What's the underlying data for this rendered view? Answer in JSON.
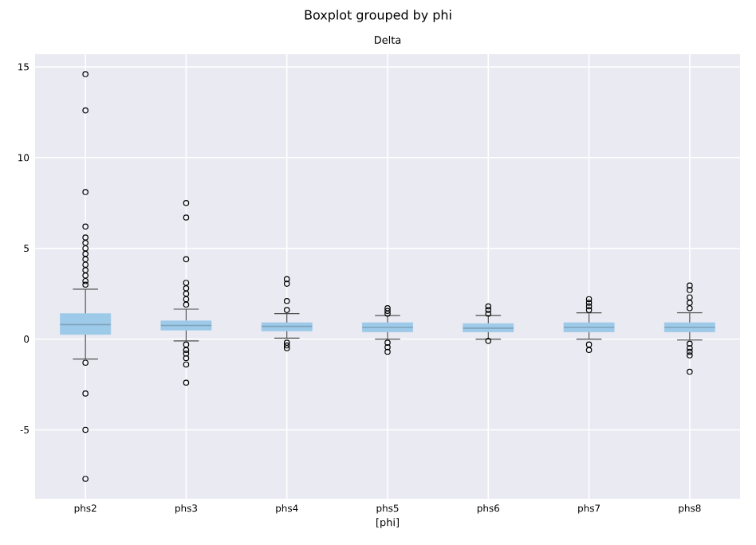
{
  "chart_data": {
    "type": "box",
    "title": "Boxplot grouped by phi",
    "subtitle": "Delta",
    "xlabel": "[phi]",
    "categories": [
      "phs2",
      "phs3",
      "phs4",
      "phs5",
      "phs6",
      "phs7",
      "phs8"
    ],
    "ylim": [
      -8.8,
      15.7
    ],
    "yticks": [
      -5,
      0,
      5,
      10,
      15
    ],
    "grid": true,
    "marker": "circle",
    "color": "#9ecae9",
    "boxes": [
      {
        "low": -1.1,
        "q1": 0.26,
        "median": 0.8,
        "q3": 1.4,
        "high": 2.75,
        "outliers": [
          14.6,
          12.6,
          8.1,
          6.2,
          5.6,
          5.3,
          5.0,
          4.7,
          4.4,
          4.1,
          3.8,
          3.5,
          3.2,
          3.0,
          -1.3,
          -3.0,
          -5.0,
          -7.7
        ]
      },
      {
        "low": -0.1,
        "q1": 0.5,
        "median": 0.75,
        "q3": 1.0,
        "high": 1.65,
        "outliers": [
          7.5,
          6.7,
          4.4,
          3.1,
          2.8,
          2.5,
          2.2,
          1.9,
          -0.3,
          -0.6,
          -0.8,
          -1.05,
          -1.4,
          -2.4
        ]
      },
      {
        "low": 0.05,
        "q1": 0.45,
        "median": 0.7,
        "q3": 0.9,
        "high": 1.4,
        "outliers": [
          3.3,
          3.05,
          2.1,
          1.6,
          -0.2,
          -0.35,
          -0.5
        ]
      },
      {
        "low": 0.0,
        "q1": 0.4,
        "median": 0.65,
        "q3": 0.9,
        "high": 1.3,
        "outliers": [
          1.7,
          1.55,
          1.4,
          -0.2,
          -0.45,
          -0.7
        ]
      },
      {
        "low": 0.0,
        "q1": 0.4,
        "median": 0.6,
        "q3": 0.85,
        "high": 1.3,
        "outliers": [
          1.8,
          1.6,
          1.4,
          -0.1
        ]
      },
      {
        "low": 0.0,
        "q1": 0.4,
        "median": 0.65,
        "q3": 0.9,
        "high": 1.45,
        "outliers": [
          2.2,
          2.0,
          1.8,
          1.6,
          -0.3,
          -0.6
        ]
      },
      {
        "low": -0.05,
        "q1": 0.4,
        "median": 0.65,
        "q3": 0.9,
        "high": 1.45,
        "outliers": [
          2.95,
          2.7,
          2.3,
          2.0,
          1.7,
          -0.25,
          -0.5,
          -0.7,
          -0.9,
          -1.8
        ]
      }
    ]
  }
}
